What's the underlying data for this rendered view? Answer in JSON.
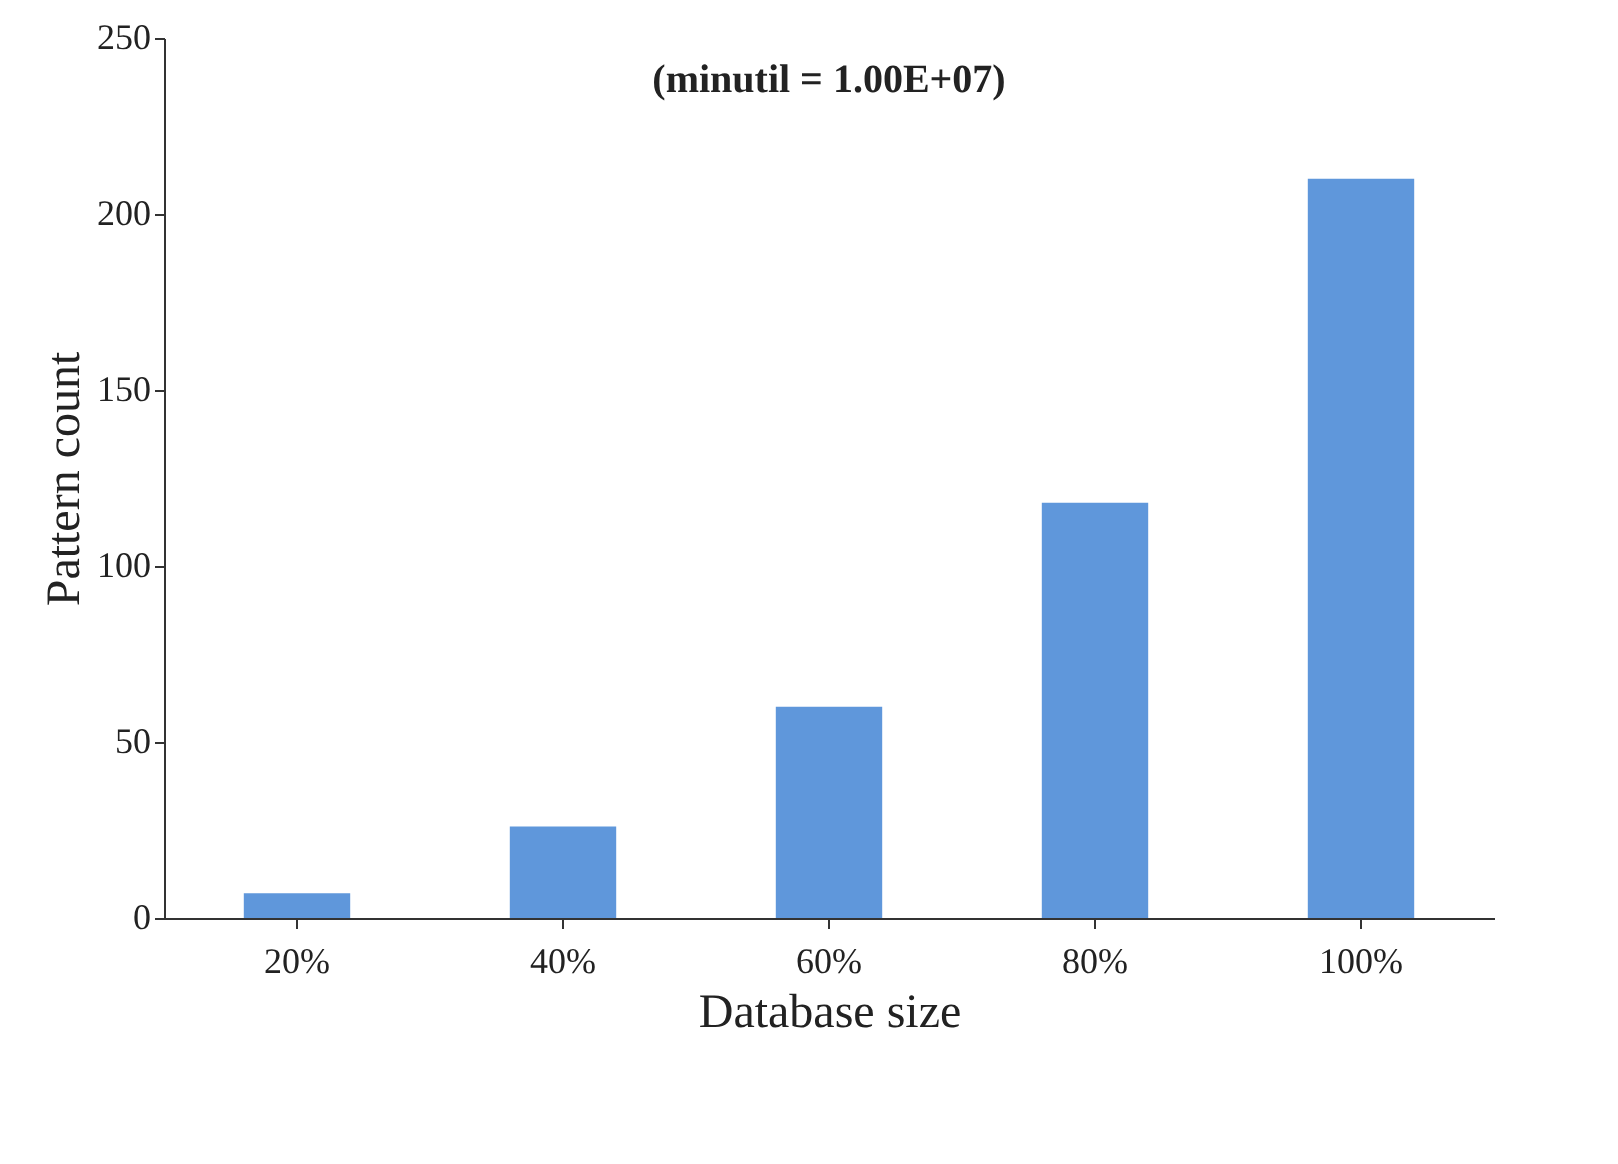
{
  "chart_data": {
    "type": "bar",
    "subtitle": "(minutil = 1.00E+07)",
    "xlabel": "Database size",
    "ylabel": "Pattern count",
    "categories": [
      "20%",
      "40%",
      "60%",
      "80%",
      "100%"
    ],
    "values": [
      7,
      26,
      60,
      118,
      210
    ],
    "color": "#5f97db",
    "ylim": [
      0,
      250
    ],
    "yticks": [
      0,
      50,
      100,
      150,
      200,
      250
    ],
    "grid": false
  }
}
